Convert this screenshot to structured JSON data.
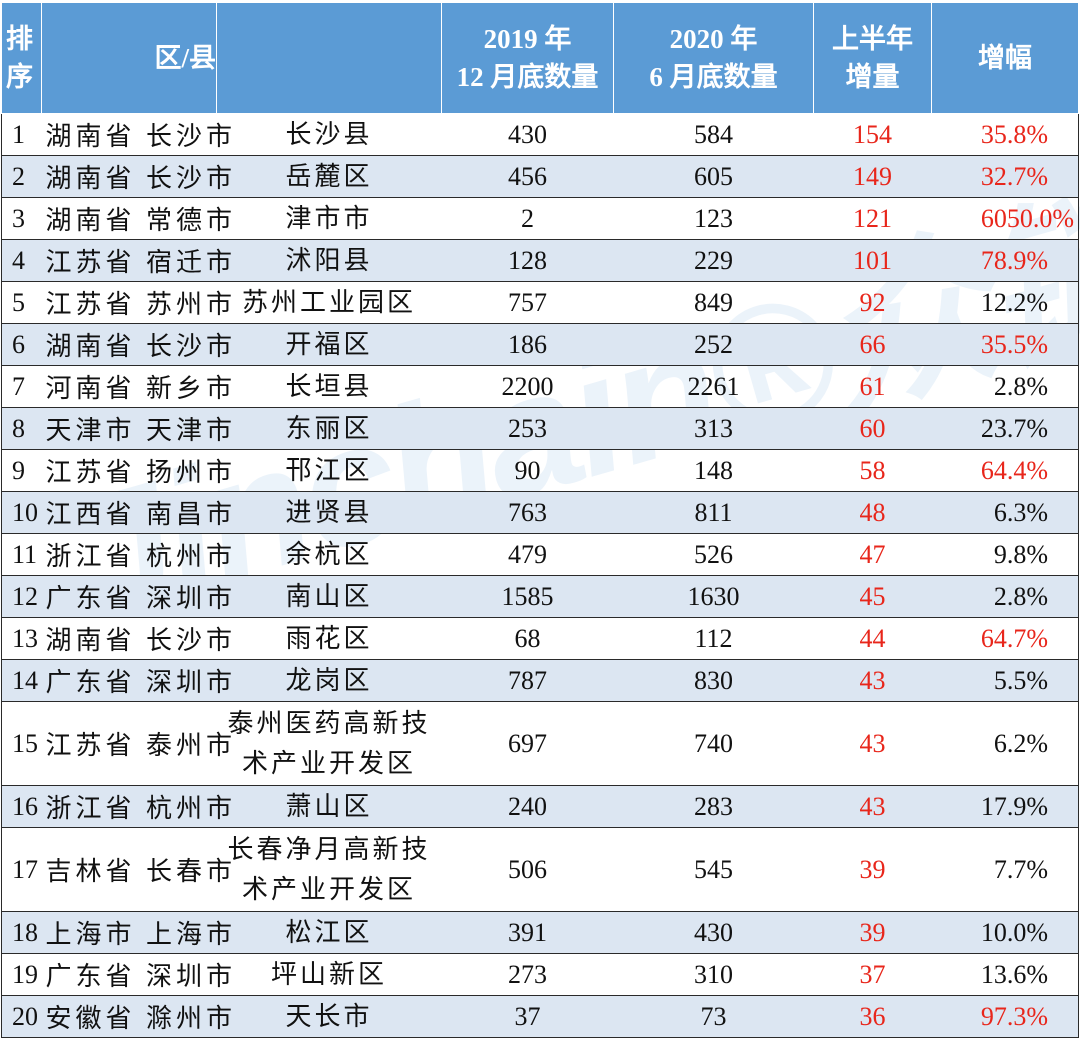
{
  "colors": {
    "header_bg": "#5b9bd5",
    "header_text": "#ffffff",
    "alt_row_bg": "#dce6f2",
    "highlight": "#e8261b",
    "watermark": "#5b9bd5"
  },
  "watermark_text": "Jinchain®众链",
  "chart_data": {
    "type": "table",
    "columns": [
      "排\n序",
      "区/县",
      "",
      "2019 年\n12 月底数量",
      "2020 年\n6 月底数量",
      "上半年\n增量",
      "增幅"
    ],
    "rows": [
      {
        "rank": "1",
        "location": "湖南省 长沙市",
        "district": "长沙县",
        "y2019": 430,
        "y2020": 584,
        "increase": 154,
        "growth": "35.8%",
        "growth_highlight": true
      },
      {
        "rank": "2",
        "location": "湖南省 长沙市",
        "district": "岳麓区",
        "y2019": 456,
        "y2020": 605,
        "increase": 149,
        "growth": "32.7%",
        "growth_highlight": true
      },
      {
        "rank": "3",
        "location": "湖南省 常德市",
        "district": "津市市",
        "y2019": 2,
        "y2020": 123,
        "increase": 121,
        "growth": "6050.0%",
        "growth_highlight": true
      },
      {
        "rank": "4",
        "location": "江苏省 宿迁市",
        "district": "沭阳县",
        "y2019": 128,
        "y2020": 229,
        "increase": 101,
        "growth": "78.9%",
        "growth_highlight": true
      },
      {
        "rank": "5",
        "location": "江苏省 苏州市",
        "district": "苏州工业园区",
        "y2019": 757,
        "y2020": 849,
        "increase": 92,
        "growth": "12.2%",
        "growth_highlight": false
      },
      {
        "rank": "6",
        "location": "湖南省 长沙市",
        "district": "开福区",
        "y2019": 186,
        "y2020": 252,
        "increase": 66,
        "growth": "35.5%",
        "growth_highlight": true
      },
      {
        "rank": "7",
        "location": "河南省 新乡市",
        "district": "长垣县",
        "y2019": 2200,
        "y2020": 2261,
        "increase": 61,
        "growth": "2.8%",
        "growth_highlight": false
      },
      {
        "rank": "8",
        "location": "天津市 天津市",
        "district": "东丽区",
        "y2019": 253,
        "y2020": 313,
        "increase": 60,
        "growth": "23.7%",
        "growth_highlight": false
      },
      {
        "rank": "9",
        "location": "江苏省 扬州市",
        "district": "邗江区",
        "y2019": 90,
        "y2020": 148,
        "increase": 58,
        "growth": "64.4%",
        "growth_highlight": true
      },
      {
        "rank": "10",
        "location": "江西省 南昌市",
        "district": "进贤县",
        "y2019": 763,
        "y2020": 811,
        "increase": 48,
        "growth": "6.3%",
        "growth_highlight": false
      },
      {
        "rank": "11",
        "location": "浙江省 杭州市",
        "district": "余杭区",
        "y2019": 479,
        "y2020": 526,
        "increase": 47,
        "growth": "9.8%",
        "growth_highlight": false
      },
      {
        "rank": "12",
        "location": "广东省 深圳市",
        "district": "南山区",
        "y2019": 1585,
        "y2020": 1630,
        "increase": 45,
        "growth": "2.8%",
        "growth_highlight": false
      },
      {
        "rank": "13",
        "location": "湖南省 长沙市",
        "district": "雨花区",
        "y2019": 68,
        "y2020": 112,
        "increase": 44,
        "growth": "64.7%",
        "growth_highlight": true
      },
      {
        "rank": "14",
        "location": "广东省 深圳市",
        "district": "龙岗区",
        "y2019": 787,
        "y2020": 830,
        "increase": 43,
        "growth": "5.5%",
        "growth_highlight": false
      },
      {
        "rank": "15",
        "location": "江苏省 泰州市",
        "district": "泰州医药高新技\n术产业开发区",
        "y2019": 697,
        "y2020": 740,
        "increase": 43,
        "growth": "6.2%",
        "growth_highlight": false
      },
      {
        "rank": "16",
        "location": "浙江省 杭州市",
        "district": "萧山区",
        "y2019": 240,
        "y2020": 283,
        "increase": 43,
        "growth": "17.9%",
        "growth_highlight": false
      },
      {
        "rank": "17",
        "location": "吉林省 长春市",
        "district": "长春净月高新技\n术产业开发区",
        "y2019": 506,
        "y2020": 545,
        "increase": 39,
        "growth": "7.7%",
        "growth_highlight": false
      },
      {
        "rank": "18",
        "location": "上海市 上海市",
        "district": "松江区",
        "y2019": 391,
        "y2020": 430,
        "increase": 39,
        "growth": "10.0%",
        "growth_highlight": false
      },
      {
        "rank": "19",
        "location": "广东省 深圳市",
        "district": "坪山新区",
        "y2019": 273,
        "y2020": 310,
        "increase": 37,
        "growth": "13.6%",
        "growth_highlight": false
      },
      {
        "rank": "20",
        "location": "安徽省 滁州市",
        "district": "天长市",
        "y2019": 37,
        "y2020": 73,
        "increase": 36,
        "growth": "97.3%",
        "growth_highlight": true
      }
    ]
  }
}
